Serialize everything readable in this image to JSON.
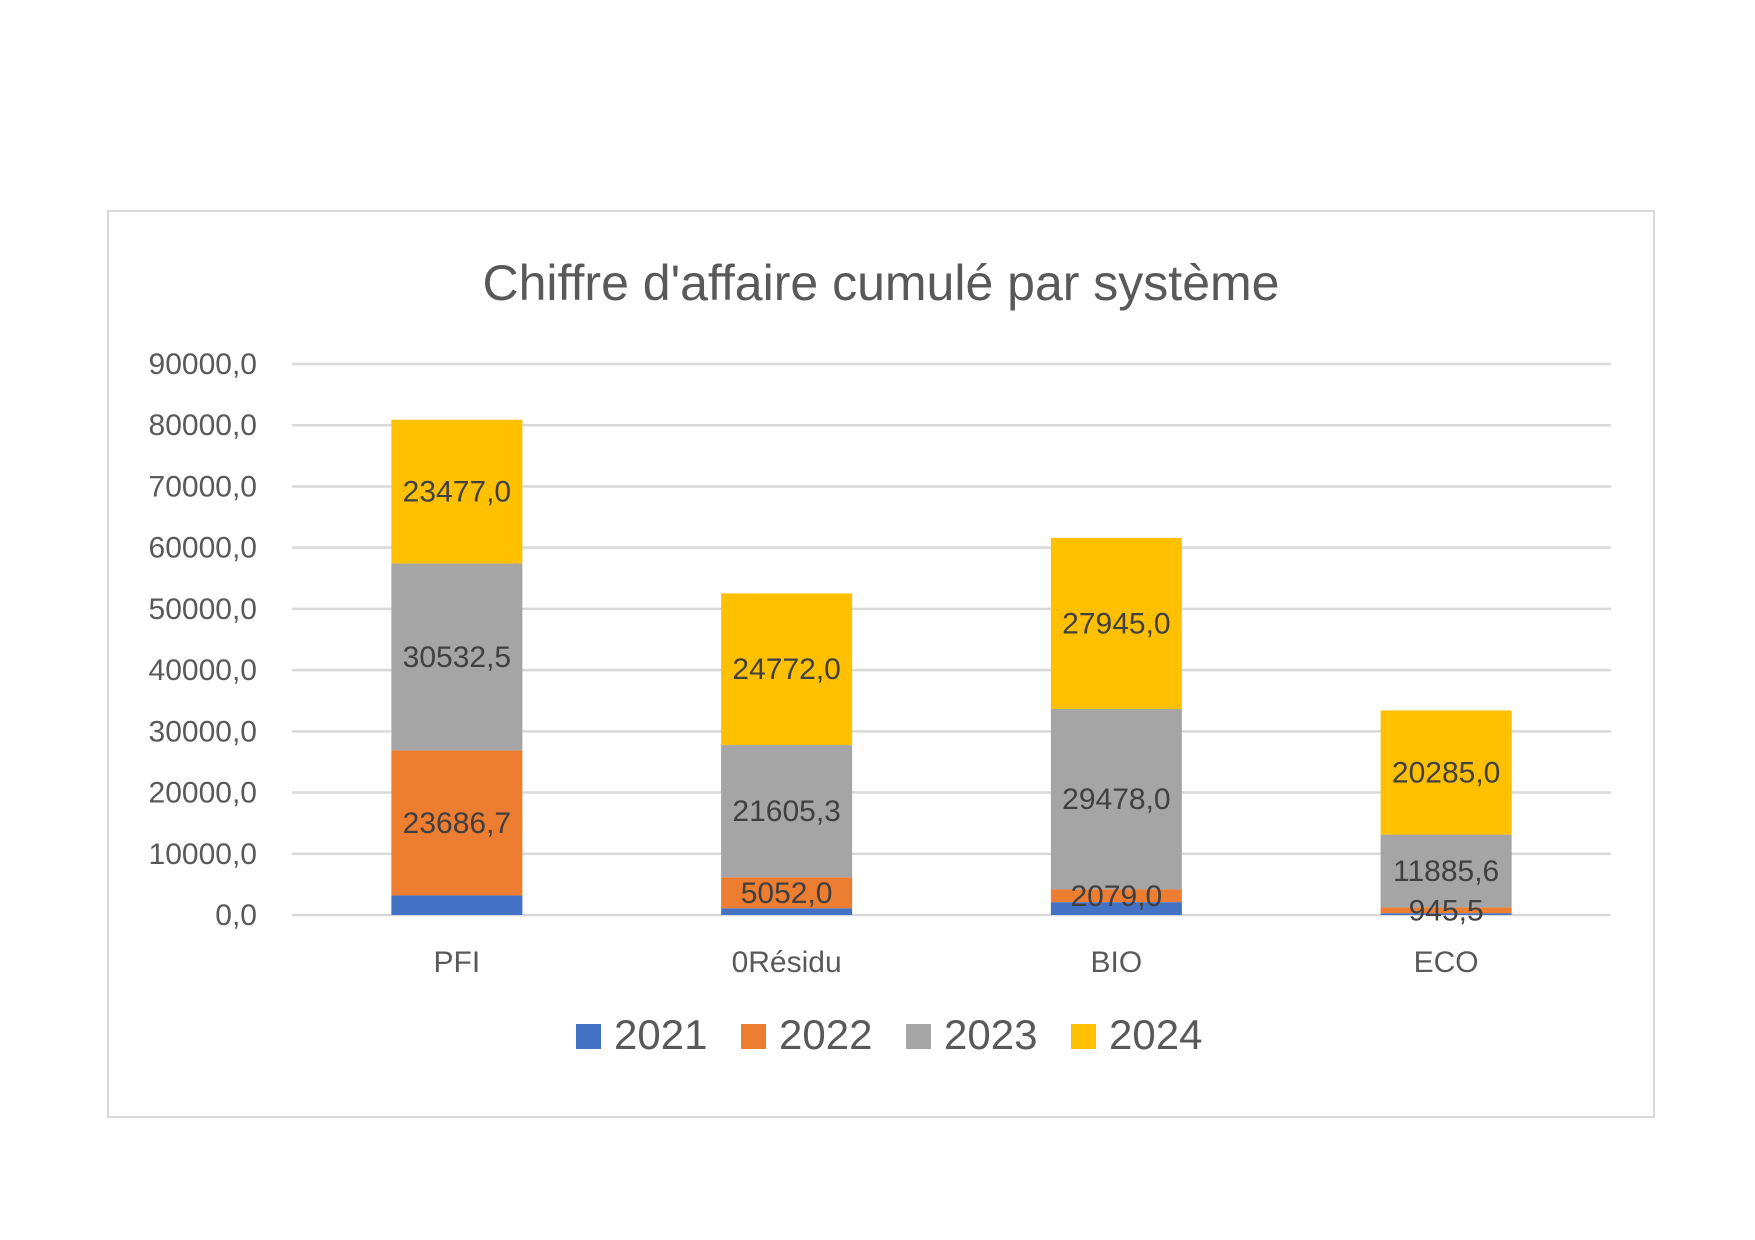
{
  "chart_data": {
    "type": "bar",
    "stacked": true,
    "title": "Chiffre d'affaire cumulé par système",
    "xlabel": "",
    "ylabel": "",
    "ylim": [
      0,
      90000
    ],
    "ytick_values": [
      0,
      10000,
      20000,
      30000,
      40000,
      50000,
      60000,
      70000,
      80000,
      90000
    ],
    "ytick_labels": [
      "0,0",
      "10000,0",
      "20000,0",
      "30000,0",
      "40000,0",
      "50000,0",
      "60000,0",
      "70000,0",
      "80000,0",
      "90000,0"
    ],
    "grid": true,
    "legend_position": "bottom",
    "categories": [
      "PFI",
      "0Résidu",
      "BIO",
      "ECO"
    ],
    "series": [
      {
        "name": "2021",
        "color": "#4472c4",
        "values": [
          3200,
          1100,
          2100,
          300
        ],
        "labels": [
          "",
          "",
          "",
          ""
        ]
      },
      {
        "name": "2022",
        "color": "#ed7d31",
        "values": [
          23686.7,
          5052.0,
          2079.0,
          945.5
        ],
        "labels": [
          "23686,7",
          "5052,0",
          "2079,0",
          "945,5"
        ]
      },
      {
        "name": "2023",
        "color": "#a5a5a5",
        "values": [
          30532.5,
          21605.3,
          29478.0,
          11885.6
        ],
        "labels": [
          "30532,5",
          "21605,3",
          "29478,0",
          "11885,6"
        ]
      },
      {
        "name": "2024",
        "color": "#ffc000",
        "values": [
          23477.0,
          24772.0,
          27945.0,
          20285.0
        ],
        "labels": [
          "23477,0",
          "24772,0",
          "27945,0",
          "20285,0"
        ]
      }
    ]
  }
}
